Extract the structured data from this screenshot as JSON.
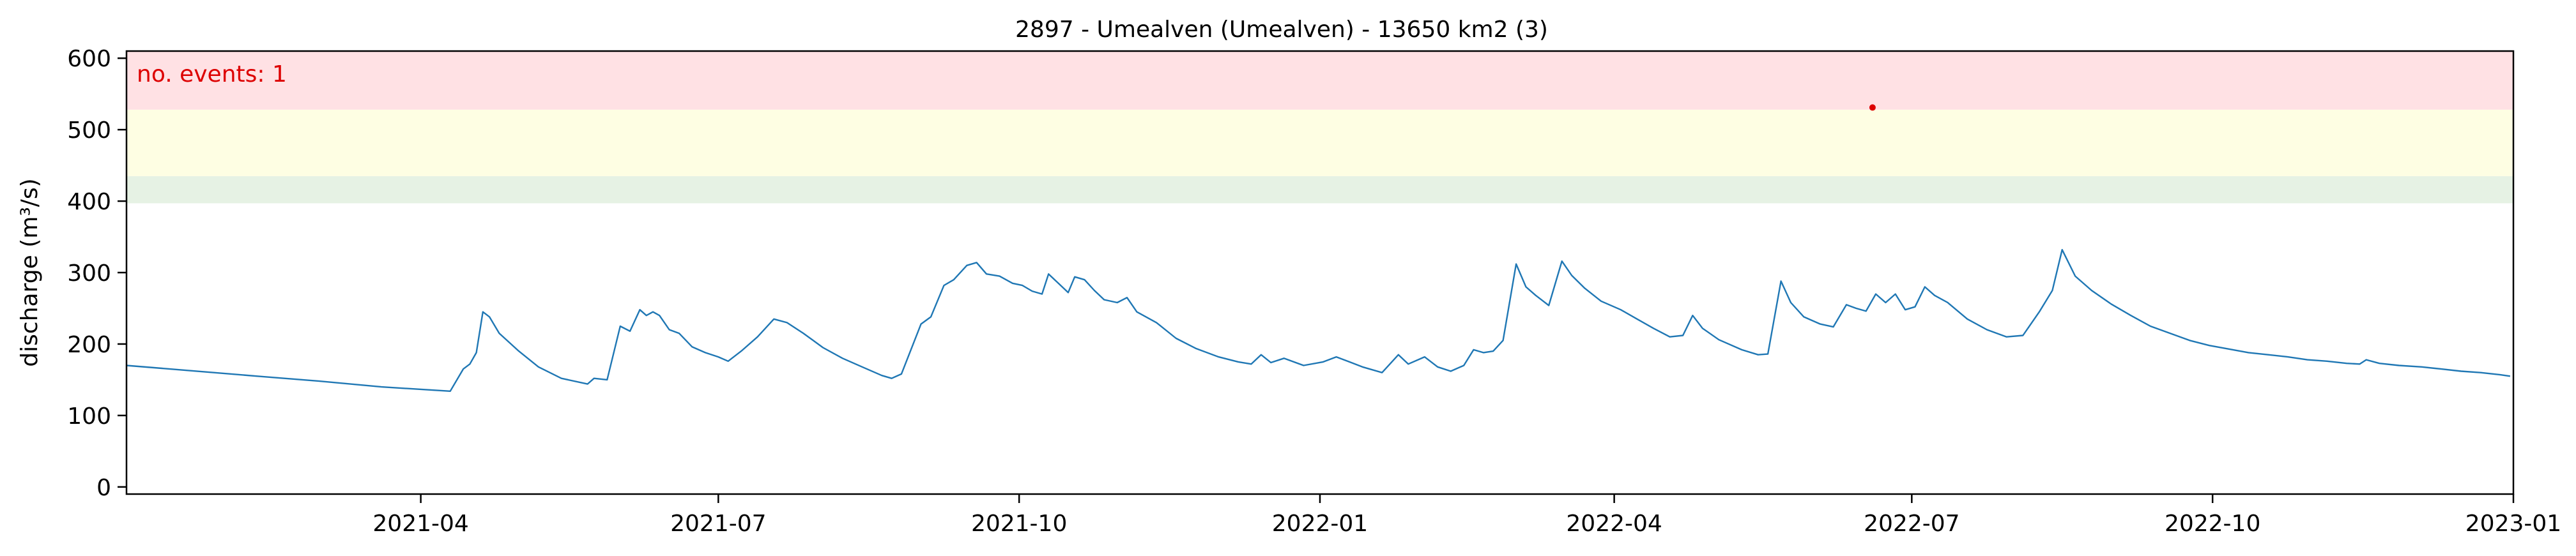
{
  "chart_data": {
    "type": "line",
    "title": "2897 - Umealven (Umealven) - 13650 km2 (3)",
    "xlabel": "",
    "ylabel": "discharge (m³/s)",
    "xlim": [
      "2021-01-01",
      "2023-01-01"
    ],
    "ylim": [
      -10,
      610
    ],
    "grid": false,
    "xticks": [
      {
        "date": "2021-04-01",
        "label": "2021-04"
      },
      {
        "date": "2021-07-01",
        "label": "2021-07"
      },
      {
        "date": "2021-10-01",
        "label": "2021-10"
      },
      {
        "date": "2022-01-01",
        "label": "2022-01"
      },
      {
        "date": "2022-04-01",
        "label": "2022-04"
      },
      {
        "date": "2022-07-01",
        "label": "2022-07"
      },
      {
        "date": "2022-10-01",
        "label": "2022-10"
      },
      {
        "date": "2023-01-01",
        "label": "2023-01"
      }
    ],
    "yticks": [
      0,
      100,
      200,
      300,
      400,
      500,
      600
    ],
    "threshold_bands": [
      {
        "from": 397,
        "to": 435,
        "color": "#e6f2e4"
      },
      {
        "from": 435,
        "to": 528,
        "color": "#fefee3"
      },
      {
        "from": 528,
        "to": 610,
        "color": "#ffe1e4"
      }
    ],
    "annotation": {
      "text": "no. events: 1",
      "color": "#dd0000",
      "position": "top-left"
    },
    "events": [
      {
        "x": "2022-06-19",
        "y": 531,
        "color": "#dd0000"
      }
    ],
    "series": [
      {
        "color": "#1f77b4",
        "points": [
          [
            "2021-01-01",
            170
          ],
          [
            "2021-01-20",
            163
          ],
          [
            "2021-02-10",
            155
          ],
          [
            "2021-03-01",
            148
          ],
          [
            "2021-03-20",
            140
          ],
          [
            "2021-04-10",
            134
          ],
          [
            "2021-04-14",
            165
          ],
          [
            "2021-04-16",
            172
          ],
          [
            "2021-04-18",
            188
          ],
          [
            "2021-04-20",
            245
          ],
          [
            "2021-04-22",
            238
          ],
          [
            "2021-04-25",
            215
          ],
          [
            "2021-05-01",
            190
          ],
          [
            "2021-05-07",
            168
          ],
          [
            "2021-05-14",
            152
          ],
          [
            "2021-05-22",
            144
          ],
          [
            "2021-05-24",
            152
          ],
          [
            "2021-05-28",
            150
          ],
          [
            "2021-06-01",
            225
          ],
          [
            "2021-06-04",
            218
          ],
          [
            "2021-06-07",
            248
          ],
          [
            "2021-06-09",
            240
          ],
          [
            "2021-06-11",
            245
          ],
          [
            "2021-06-13",
            240
          ],
          [
            "2021-06-16",
            220
          ],
          [
            "2021-06-19",
            215
          ],
          [
            "2021-06-23",
            196
          ],
          [
            "2021-06-27",
            188
          ],
          [
            "2021-07-01",
            182
          ],
          [
            "2021-07-04",
            176
          ],
          [
            "2021-07-08",
            190
          ],
          [
            "2021-07-13",
            210
          ],
          [
            "2021-07-18",
            235
          ],
          [
            "2021-07-22",
            230
          ],
          [
            "2021-07-27",
            215
          ],
          [
            "2021-08-02",
            195
          ],
          [
            "2021-08-08",
            180
          ],
          [
            "2021-08-14",
            168
          ],
          [
            "2021-08-20",
            156
          ],
          [
            "2021-08-23",
            152
          ],
          [
            "2021-08-26",
            158
          ],
          [
            "2021-09-01",
            228
          ],
          [
            "2021-09-04",
            238
          ],
          [
            "2021-09-08",
            282
          ],
          [
            "2021-09-11",
            290
          ],
          [
            "2021-09-15",
            310
          ],
          [
            "2021-09-18",
            314
          ],
          [
            "2021-09-21",
            298
          ],
          [
            "2021-09-25",
            295
          ],
          [
            "2021-09-29",
            285
          ],
          [
            "2021-10-02",
            282
          ],
          [
            "2021-10-05",
            274
          ],
          [
            "2021-10-08",
            270
          ],
          [
            "2021-10-10",
            298
          ],
          [
            "2021-10-13",
            285
          ],
          [
            "2021-10-16",
            272
          ],
          [
            "2021-10-18",
            294
          ],
          [
            "2021-10-21",
            290
          ],
          [
            "2021-10-24",
            275
          ],
          [
            "2021-10-27",
            262
          ],
          [
            "2021-10-31",
            258
          ],
          [
            "2021-11-03",
            265
          ],
          [
            "2021-11-06",
            245
          ],
          [
            "2021-11-12",
            230
          ],
          [
            "2021-11-18",
            208
          ],
          [
            "2021-11-24",
            194
          ],
          [
            "2021-12-01",
            182
          ],
          [
            "2021-12-07",
            175
          ],
          [
            "2021-12-11",
            172
          ],
          [
            "2021-12-14",
            185
          ],
          [
            "2021-12-17",
            174
          ],
          [
            "2021-12-21",
            180
          ],
          [
            "2021-12-27",
            170
          ],
          [
            "2022-01-02",
            175
          ],
          [
            "2022-01-06",
            182
          ],
          [
            "2022-01-10",
            175
          ],
          [
            "2022-01-14",
            168
          ],
          [
            "2022-01-20",
            160
          ],
          [
            "2022-01-25",
            185
          ],
          [
            "2022-01-28",
            172
          ],
          [
            "2022-02-02",
            182
          ],
          [
            "2022-02-06",
            168
          ],
          [
            "2022-02-10",
            162
          ],
          [
            "2022-02-14",
            170
          ],
          [
            "2022-02-17",
            192
          ],
          [
            "2022-02-20",
            188
          ],
          [
            "2022-02-23",
            190
          ],
          [
            "2022-02-26",
            205
          ],
          [
            "2022-03-02",
            312
          ],
          [
            "2022-03-05",
            280
          ],
          [
            "2022-03-08",
            268
          ],
          [
            "2022-03-12",
            254
          ],
          [
            "2022-03-16",
            316
          ],
          [
            "2022-03-19",
            296
          ],
          [
            "2022-03-23",
            278
          ],
          [
            "2022-03-28",
            260
          ],
          [
            "2022-04-03",
            248
          ],
          [
            "2022-04-08",
            235
          ],
          [
            "2022-04-13",
            222
          ],
          [
            "2022-04-18",
            210
          ],
          [
            "2022-04-22",
            212
          ],
          [
            "2022-04-25",
            240
          ],
          [
            "2022-04-28",
            222
          ],
          [
            "2022-05-03",
            206
          ],
          [
            "2022-05-10",
            192
          ],
          [
            "2022-05-15",
            185
          ],
          [
            "2022-05-18",
            186
          ],
          [
            "2022-05-22",
            288
          ],
          [
            "2022-05-25",
            258
          ],
          [
            "2022-05-29",
            238
          ],
          [
            "2022-06-03",
            228
          ],
          [
            "2022-06-07",
            224
          ],
          [
            "2022-06-11",
            255
          ],
          [
            "2022-06-14",
            250
          ],
          [
            "2022-06-17",
            246
          ],
          [
            "2022-06-20",
            270
          ],
          [
            "2022-06-23",
            258
          ],
          [
            "2022-06-26",
            270
          ],
          [
            "2022-06-29",
            248
          ],
          [
            "2022-07-02",
            252
          ],
          [
            "2022-07-05",
            280
          ],
          [
            "2022-07-08",
            268
          ],
          [
            "2022-07-12",
            258
          ],
          [
            "2022-07-18",
            235
          ],
          [
            "2022-07-24",
            220
          ],
          [
            "2022-07-30",
            210
          ],
          [
            "2022-08-04",
            212
          ],
          [
            "2022-08-09",
            245
          ],
          [
            "2022-08-13",
            275
          ],
          [
            "2022-08-16",
            332
          ],
          [
            "2022-08-20",
            295
          ],
          [
            "2022-08-25",
            275
          ],
          [
            "2022-08-31",
            256
          ],
          [
            "2022-09-06",
            240
          ],
          [
            "2022-09-12",
            225
          ],
          [
            "2022-09-18",
            215
          ],
          [
            "2022-09-24",
            205
          ],
          [
            "2022-09-30",
            198
          ],
          [
            "2022-10-06",
            193
          ],
          [
            "2022-10-12",
            188
          ],
          [
            "2022-10-18",
            185
          ],
          [
            "2022-10-24",
            182
          ],
          [
            "2022-10-30",
            178
          ],
          [
            "2022-11-05",
            176
          ],
          [
            "2022-11-11",
            173
          ],
          [
            "2022-11-15",
            172
          ],
          [
            "2022-11-17",
            178
          ],
          [
            "2022-11-21",
            173
          ],
          [
            "2022-11-27",
            170
          ],
          [
            "2022-12-04",
            168
          ],
          [
            "2022-12-10",
            165
          ],
          [
            "2022-12-16",
            162
          ],
          [
            "2022-12-22",
            160
          ],
          [
            "2022-12-28",
            157
          ],
          [
            "2022-12-31",
            155
          ]
        ]
      }
    ]
  }
}
